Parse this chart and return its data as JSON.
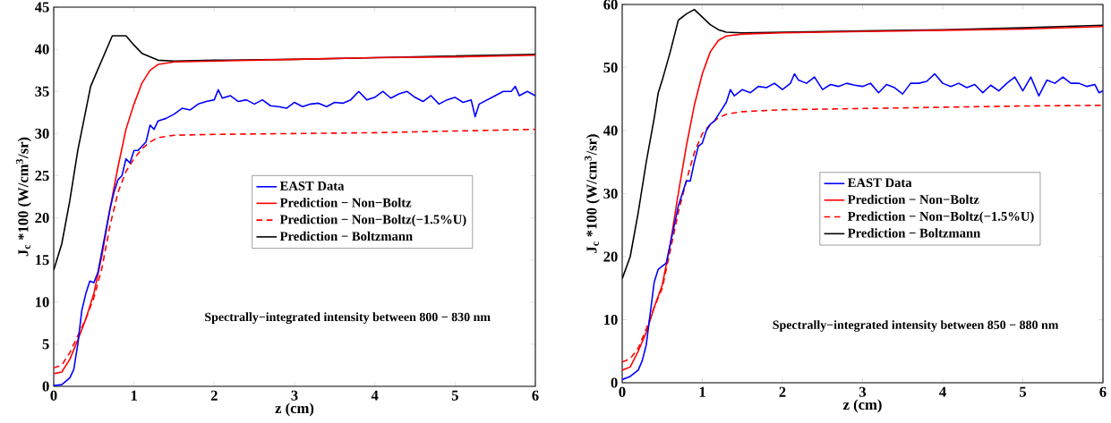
{
  "chart_data": [
    {
      "type": "line",
      "xlabel": "z (cm)",
      "ylabel": "J$_{c}$ *100 (W/cm$^{3}$/sr)",
      "xlim": [
        0,
        6
      ],
      "ylim": [
        0,
        45
      ],
      "xticks": [
        0,
        1,
        2,
        3,
        4,
        5,
        6
      ],
      "yticks": [
        0,
        5,
        10,
        15,
        20,
        25,
        30,
        35,
        40,
        45
      ],
      "legend": "center right",
      "annotations": [
        "Spectrally−integrated intensity between 800 − 830 nm"
      ],
      "series": [
        {
          "name": "EAST Data",
          "color": "#0000ff",
          "line_style": "solid",
          "x": [
            0,
            0.1,
            0.2,
            0.25,
            0.3,
            0.35,
            0.4,
            0.45,
            0.5,
            0.55,
            0.6,
            0.7,
            0.75,
            0.8,
            0.85,
            0.9,
            0.95,
            1.0,
            1.05,
            1.1,
            1.15,
            1.2,
            1.25,
            1.3,
            1.4,
            1.5,
            1.6,
            1.7,
            1.8,
            1.9,
            2.0,
            2.05,
            2.1,
            2.2,
            2.3,
            2.4,
            2.5,
            2.6,
            2.7,
            2.8,
            2.9,
            3.0,
            3.1,
            3.2,
            3.3,
            3.4,
            3.5,
            3.6,
            3.7,
            3.8,
            3.9,
            4.0,
            4.1,
            4.2,
            4.3,
            4.4,
            4.5,
            4.6,
            4.7,
            4.8,
            4.9,
            5.0,
            5.1,
            5.2,
            5.25,
            5.3,
            5.4,
            5.5,
            5.6,
            5.7,
            5.75,
            5.8,
            5.9,
            6.0
          ],
          "values": [
            0.1,
            0.2,
            1,
            2,
            5,
            9,
            11,
            12.5,
            12.3,
            13.5,
            16,
            21,
            23,
            24.5,
            25,
            27,
            26.5,
            28,
            28,
            28.5,
            29,
            31,
            30.5,
            31.5,
            31.8,
            32.3,
            33,
            32.8,
            33.5,
            33.8,
            34,
            35.2,
            34.2,
            34.5,
            33.8,
            34,
            33.5,
            34,
            33.3,
            33.2,
            33,
            33.7,
            33.2,
            33.5,
            33.6,
            33.2,
            33.7,
            33.6,
            34,
            35,
            34,
            34.3,
            35,
            34.2,
            34.7,
            35,
            34.3,
            33.8,
            34.5,
            33.5,
            34,
            34.3,
            33.7,
            34,
            32,
            33.5,
            34,
            34.5,
            35,
            35,
            35.6,
            34.5,
            35,
            34.5
          ]
        },
        {
          "name": "Prediction − Non−Boltz",
          "color": "#ff0000",
          "line_style": "solid",
          "x": [
            0,
            0.1,
            0.2,
            0.3,
            0.4,
            0.5,
            0.6,
            0.7,
            0.8,
            0.9,
            1.0,
            1.1,
            1.2,
            1.3,
            1.5,
            2,
            3,
            4,
            5,
            6
          ],
          "values": [
            1.5,
            1.7,
            3.2,
            5.5,
            8,
            11,
            15.5,
            21,
            26,
            30.5,
            33.5,
            36,
            37.5,
            38.2,
            38.5,
            38.6,
            38.8,
            39,
            39.1,
            39.3
          ]
        },
        {
          "name": "Prediction − Non−Boltz(−1.5%U)",
          "color": "#ff0000",
          "line_style": "dashed",
          "x": [
            0,
            0.1,
            0.2,
            0.3,
            0.4,
            0.5,
            0.6,
            0.7,
            0.8,
            0.9,
            1.0,
            1.1,
            1.2,
            1.3,
            1.5,
            2,
            3,
            4,
            5,
            6
          ],
          "values": [
            2.2,
            2.5,
            4,
            6,
            8,
            10.5,
            14,
            19,
            23,
            25.5,
            27,
            28.2,
            29,
            29.5,
            29.8,
            29.9,
            30,
            30.1,
            30.3,
            30.5
          ]
        },
        {
          "name": "Prediction − Boltzmann",
          "color": "#000000",
          "line_style": "solid",
          "x": [
            0,
            0.1,
            0.2,
            0.3,
            0.46,
            0.5,
            0.73,
            0.9,
            1.0,
            1.1,
            1.3,
            1.5,
            2,
            3,
            4,
            5,
            6
          ],
          "values": [
            13.8,
            16.9,
            22,
            28,
            35.6,
            36.5,
            41.6,
            41.6,
            40.5,
            39.5,
            38.7,
            38.6,
            38.7,
            38.8,
            39,
            39.2,
            39.4
          ]
        }
      ]
    },
    {
      "type": "line",
      "xlabel": "z (cm)",
      "ylabel": "J$_{c}$ *100 (W/cm$^{3}$/sr)",
      "xlim": [
        0,
        6
      ],
      "ylim": [
        0,
        60
      ],
      "xticks": [
        0,
        1,
        2,
        3,
        4,
        5,
        6
      ],
      "yticks": [
        0,
        10,
        20,
        30,
        40,
        50,
        60
      ],
      "legend": "center right",
      "annotations": [
        "Spectrally−integrated intensity between 850 − 880 nm"
      ],
      "series": [
        {
          "name": "EAST Data",
          "color": "#0000ff",
          "line_style": "solid",
          "x": [
            0,
            0.1,
            0.2,
            0.25,
            0.3,
            0.35,
            0.4,
            0.45,
            0.5,
            0.55,
            0.6,
            0.65,
            0.7,
            0.75,
            0.8,
            0.85,
            0.9,
            0.95,
            1.0,
            1.05,
            1.1,
            1.15,
            1.2,
            1.25,
            1.3,
            1.35,
            1.4,
            1.5,
            1.6,
            1.7,
            1.8,
            1.9,
            2.0,
            2.1,
            2.15,
            2.2,
            2.3,
            2.4,
            2.5,
            2.6,
            2.7,
            2.8,
            2.9,
            3.0,
            3.1,
            3.2,
            3.3,
            3.4,
            3.5,
            3.6,
            3.7,
            3.8,
            3.9,
            4.0,
            4.1,
            4.2,
            4.3,
            4.4,
            4.5,
            4.6,
            4.7,
            4.8,
            4.9,
            5.0,
            5.1,
            5.2,
            5.3,
            5.4,
            5.5,
            5.6,
            5.7,
            5.8,
            5.9,
            5.95,
            6.0
          ],
          "values": [
            0.5,
            1,
            2,
            3.5,
            6,
            11,
            16,
            18,
            18.5,
            19,
            22,
            25,
            28,
            30,
            32,
            32,
            35,
            37.5,
            38,
            40,
            41,
            41.5,
            42.5,
            43.5,
            44.5,
            46.5,
            45.5,
            46.5,
            46,
            47,
            46.8,
            47.5,
            46.5,
            47.5,
            49,
            48,
            47.5,
            48.5,
            46.5,
            47.3,
            47,
            47.5,
            47.2,
            47,
            47.5,
            46,
            47.3,
            46.8,
            45.8,
            47.5,
            47.5,
            47.8,
            49,
            47.5,
            47,
            47.5,
            46.8,
            47.3,
            46,
            47.2,
            46.3,
            47.5,
            48.5,
            46.3,
            48.5,
            45.5,
            48,
            47.5,
            48.5,
            47.5,
            47.5,
            47,
            47.3,
            46,
            46.3
          ]
        },
        {
          "name": "Prediction − Non−Boltz",
          "color": "#ff0000",
          "line_style": "solid",
          "x": [
            0,
            0.1,
            0.2,
            0.3,
            0.4,
            0.5,
            0.6,
            0.7,
            0.8,
            0.9,
            1.0,
            1.1,
            1.2,
            1.3,
            1.5,
            2,
            3,
            4,
            5,
            6
          ],
          "values": [
            2,
            2.5,
            5,
            8,
            12,
            15.5,
            22,
            30,
            37.5,
            44,
            49,
            52.5,
            54.3,
            55,
            55.3,
            55.5,
            55.7,
            55.9,
            56.1,
            56.5
          ]
        },
        {
          "name": "Prediction − Non−Boltz(−1.5%U)",
          "color": "#ff0000",
          "line_style": "dashed",
          "x": [
            0,
            0.1,
            0.2,
            0.3,
            0.4,
            0.5,
            0.6,
            0.7,
            0.8,
            0.9,
            1.0,
            1.1,
            1.2,
            1.3,
            1.5,
            2,
            3,
            4,
            5,
            6
          ],
          "values": [
            3.3,
            3.8,
            5.5,
            8.5,
            12,
            15,
            21,
            27,
            32,
            36.5,
            39.5,
            41,
            42,
            42.6,
            43,
            43.3,
            43.5,
            43.7,
            43.9,
            44
          ]
        },
        {
          "name": "Prediction − Boltzmann",
          "color": "#000000",
          "line_style": "solid",
          "x": [
            0,
            0.1,
            0.2,
            0.3,
            0.4,
            0.45,
            0.5,
            0.6,
            0.7,
            0.8,
            0.9,
            1.0,
            1.1,
            1.2,
            1.3,
            1.5,
            2,
            3,
            4,
            5,
            6
          ],
          "values": [
            16.5,
            20,
            27,
            35,
            42,
            46,
            48,
            52.5,
            57.5,
            58.5,
            59.2,
            58,
            56.8,
            56,
            55.6,
            55.5,
            55.6,
            55.8,
            56,
            56.3,
            56.7
          ]
        }
      ]
    }
  ]
}
